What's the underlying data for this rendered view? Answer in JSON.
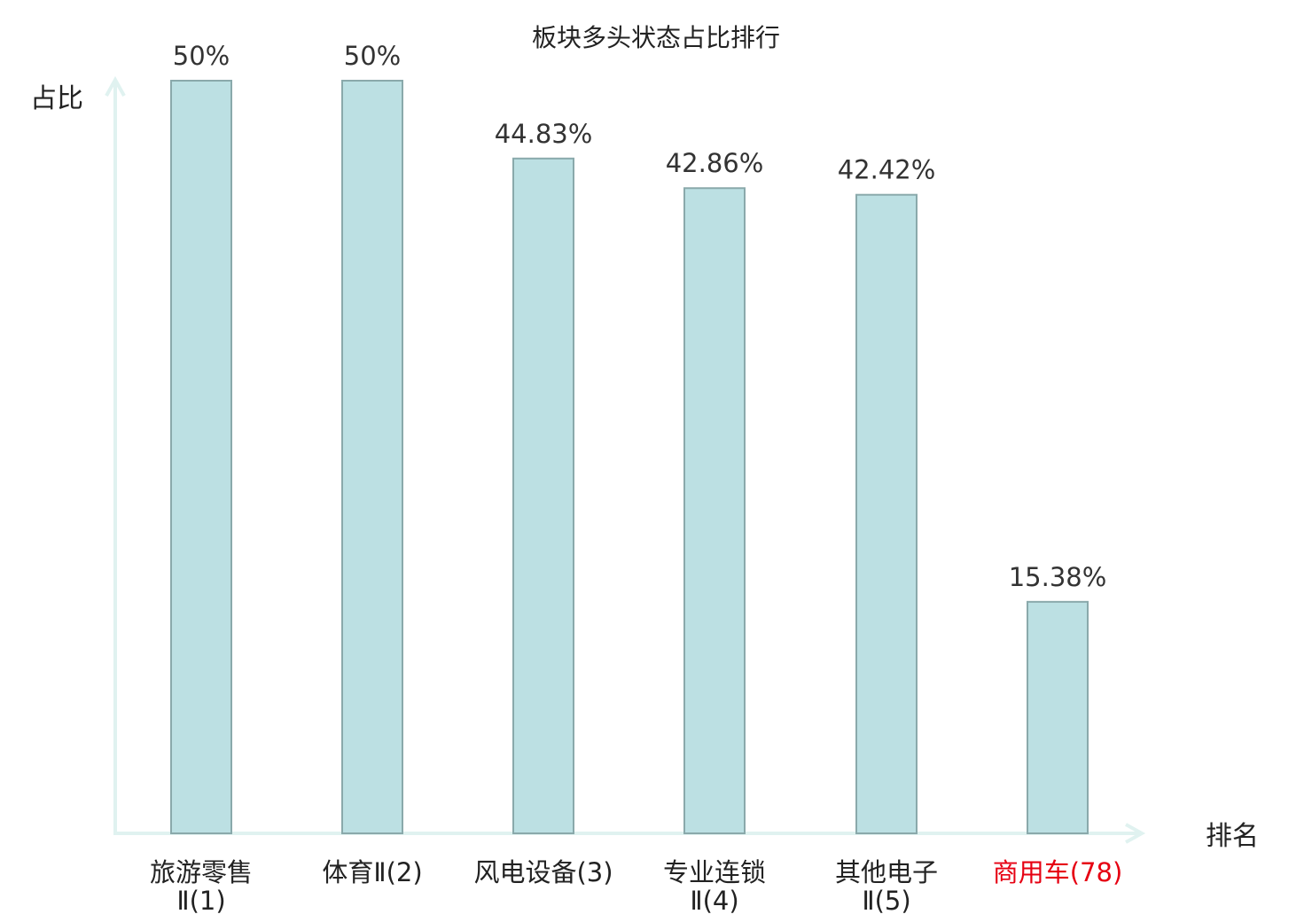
{
  "chart_data": {
    "type": "bar",
    "title": "板块多头状态占比排行",
    "ylabel": "占比",
    "xlabel": "排名",
    "categories": [
      {
        "line1": "旅游零售",
        "line2": "Ⅱ(1)"
      },
      {
        "line1": "体育Ⅱ(2)",
        "line2": ""
      },
      {
        "line1": "风电设备(3)",
        "line2": ""
      },
      {
        "line1": "专业连锁",
        "line2": "Ⅱ(4)"
      },
      {
        "line1": "其他电子",
        "line2": "Ⅱ(5)"
      },
      {
        "line1": "商用车(78)",
        "line2": ""
      }
    ],
    "values": [
      50,
      50,
      44.83,
      42.86,
      42.42,
      15.38
    ],
    "value_labels": [
      "50%",
      "50%",
      "44.83%",
      "42.86%",
      "42.42%",
      "15.38%"
    ],
    "highlight_index": 5,
    "ylim": [
      0,
      50
    ],
    "grid": false,
    "colors": {
      "bar_fill": "#bce0e3",
      "bar_stroke": "#8aa9ab",
      "axis": "#e0f2f0",
      "highlight_text": "#e60012",
      "text": "#222222"
    }
  }
}
